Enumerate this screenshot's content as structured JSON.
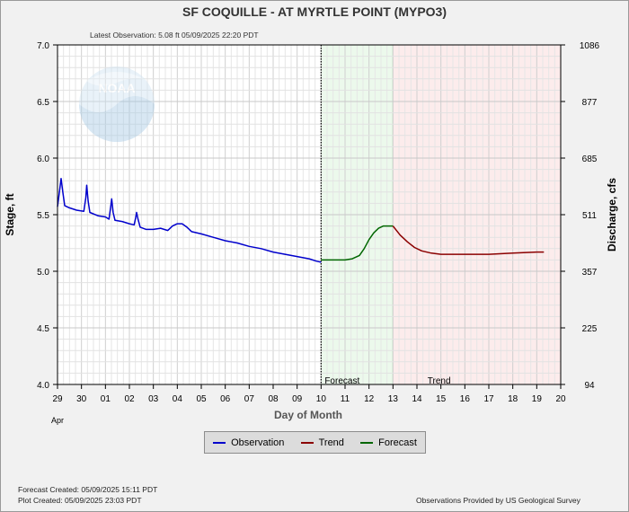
{
  "chart_data": {
    "type": "line",
    "title": "SF COQUILLE - AT MYRTLE POINT  (MYPO3)",
    "subtitle": "Latest Observation: 5.08 ft 05/09/2025 22:20 PDT",
    "xlabel": "Day of Month",
    "xlabel_month": "Apr",
    "ylabel": "Stage, ft",
    "y2label": "Discharge, cfs",
    "ylim": [
      4.0,
      7.0
    ],
    "xlim": [
      0,
      21
    ],
    "x_ticks": [
      "29",
      "30",
      "01",
      "02",
      "03",
      "04",
      "05",
      "06",
      "07",
      "08",
      "09",
      "10",
      "11",
      "12",
      "13",
      "14",
      "15",
      "16",
      "17",
      "18",
      "19",
      "20"
    ],
    "y_ticks": [
      "4.0",
      "4.5",
      "5.0",
      "5.5",
      "6.0",
      "6.5",
      "7.0"
    ],
    "y2_ticks": [
      {
        "stage": 4.0,
        "label": "94"
      },
      {
        "stage": 4.5,
        "label": "225"
      },
      {
        "stage": 5.0,
        "label": "357"
      },
      {
        "stage": 5.5,
        "label": "511"
      },
      {
        "stage": 6.0,
        "label": "685"
      },
      {
        "stage": 6.5,
        "label": "877"
      },
      {
        "stage": 7.0,
        "label": "1086"
      }
    ],
    "regions": [
      {
        "name": "Forecast",
        "x_start": 11.0,
        "x_end": 14.0,
        "color": "#ecf9ec",
        "edge": "#7fc97f"
      },
      {
        "name": "Trend",
        "x_start": 14.0,
        "x_end": 21.0,
        "color": "#fcecec",
        "edge": "#e8b0b0"
      }
    ],
    "grid": true,
    "legend_position": "bottom",
    "series": [
      {
        "name": "Observation",
        "color": "#0000cc",
        "points": [
          [
            0.0,
            5.57
          ],
          [
            0.08,
            5.7
          ],
          [
            0.15,
            5.82
          ],
          [
            0.22,
            5.7
          ],
          [
            0.3,
            5.58
          ],
          [
            0.5,
            5.56
          ],
          [
            0.8,
            5.54
          ],
          [
            1.1,
            5.53
          ],
          [
            1.18,
            5.65
          ],
          [
            1.22,
            5.76
          ],
          [
            1.28,
            5.62
          ],
          [
            1.35,
            5.52
          ],
          [
            1.7,
            5.49
          ],
          [
            2.0,
            5.48
          ],
          [
            2.15,
            5.46
          ],
          [
            2.22,
            5.57
          ],
          [
            2.26,
            5.64
          ],
          [
            2.32,
            5.52
          ],
          [
            2.4,
            5.45
          ],
          [
            2.7,
            5.44
          ],
          [
            3.0,
            5.42
          ],
          [
            3.2,
            5.41
          ],
          [
            3.26,
            5.47
          ],
          [
            3.3,
            5.52
          ],
          [
            3.36,
            5.46
          ],
          [
            3.45,
            5.39
          ],
          [
            3.7,
            5.37
          ],
          [
            4.0,
            5.37
          ],
          [
            4.3,
            5.38
          ],
          [
            4.6,
            5.36
          ],
          [
            4.8,
            5.4
          ],
          [
            5.0,
            5.42
          ],
          [
            5.2,
            5.42
          ],
          [
            5.4,
            5.39
          ],
          [
            5.6,
            5.35
          ],
          [
            6.0,
            5.33
          ],
          [
            6.5,
            5.3
          ],
          [
            7.0,
            5.27
          ],
          [
            7.5,
            5.25
          ],
          [
            8.0,
            5.22
          ],
          [
            8.5,
            5.2
          ],
          [
            9.0,
            5.17
          ],
          [
            9.5,
            5.15
          ],
          [
            10.0,
            5.13
          ],
          [
            10.5,
            5.11
          ],
          [
            10.8,
            5.09
          ],
          [
            11.0,
            5.08
          ]
        ]
      },
      {
        "name": "Forecast",
        "color": "#006600",
        "points": [
          [
            11.0,
            5.1
          ],
          [
            11.5,
            5.1
          ],
          [
            12.0,
            5.1
          ],
          [
            12.3,
            5.11
          ],
          [
            12.6,
            5.14
          ],
          [
            12.8,
            5.2
          ],
          [
            13.0,
            5.28
          ],
          [
            13.2,
            5.34
          ],
          [
            13.4,
            5.38
          ],
          [
            13.6,
            5.4
          ],
          [
            13.8,
            5.4
          ],
          [
            14.0,
            5.4
          ]
        ]
      },
      {
        "name": "Trend",
        "color": "#8b0000",
        "points": [
          [
            14.0,
            5.4
          ],
          [
            14.3,
            5.32
          ],
          [
            14.6,
            5.26
          ],
          [
            14.9,
            5.21
          ],
          [
            15.2,
            5.18
          ],
          [
            15.6,
            5.16
          ],
          [
            16.0,
            5.15
          ],
          [
            17.0,
            5.15
          ],
          [
            18.0,
            5.15
          ],
          [
            19.0,
            5.16
          ],
          [
            20.0,
            5.17
          ],
          [
            20.3,
            5.17
          ]
        ]
      }
    ]
  },
  "legend": {
    "items": [
      {
        "label": "Observation",
        "color": "#0000cc"
      },
      {
        "label": "Trend",
        "color": "#8b0000"
      },
      {
        "label": "Forecast",
        "color": "#006600"
      }
    ]
  },
  "watermark": {
    "text": "NOAA"
  },
  "footer": {
    "forecast_created": "Forecast Created: 05/09/2025 15:11 PDT",
    "plot_created": "Plot Created: 05/09/2025 23:03 PDT",
    "credit": "Observations Provided by US Geological Survey"
  }
}
